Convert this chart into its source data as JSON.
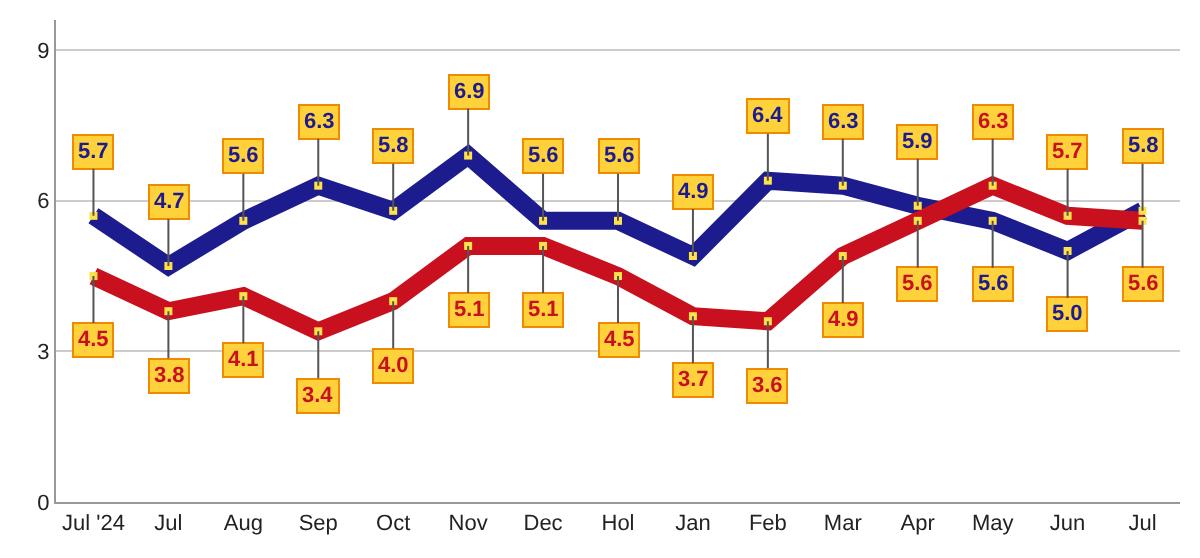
{
  "chart_data": {
    "type": "line",
    "categories": [
      "Jul '24",
      "Jul",
      "Aug",
      "Sep",
      "Oct",
      "Nov",
      "Dec",
      "Hol",
      "Jan",
      "Feb",
      "Mar",
      "Apr",
      "May",
      "Jun",
      "Jul"
    ],
    "series": [
      {
        "color": "#1c1c8e",
        "values": [
          5.7,
          4.7,
          5.6,
          6.3,
          5.8,
          6.9,
          5.6,
          5.6,
          4.9,
          6.4,
          6.3,
          5.9,
          5.6,
          5.0,
          5.8
        ],
        "value_labels": [
          "5.7",
          "4.7",
          "5.6",
          "6.3",
          "5.8",
          "6.9",
          "5.6",
          "5.6",
          "4.9",
          "6.4",
          "6.3",
          "5.9",
          "5.6",
          "5.0",
          "5.8"
        ]
      },
      {
        "color": "#c8101e",
        "values": [
          4.5,
          3.8,
          4.1,
          3.4,
          4.0,
          5.1,
          5.1,
          4.5,
          3.7,
          3.6,
          4.9,
          5.6,
          6.3,
          5.7,
          5.6
        ],
        "value_labels": [
          "4.5",
          "3.8",
          "4.1",
          "3.4",
          "4.0",
          "5.1",
          "5.1",
          "4.5",
          "3.7",
          "3.6",
          "4.9",
          "5.6",
          "6.3",
          "5.7",
          "5.6"
        ]
      }
    ],
    "ylim": [
      0,
      9.6
    ],
    "yticks": [
      0,
      3,
      6,
      9
    ],
    "grid": "y",
    "marker": "square",
    "line_style": "solid",
    "legend": false
  }
}
